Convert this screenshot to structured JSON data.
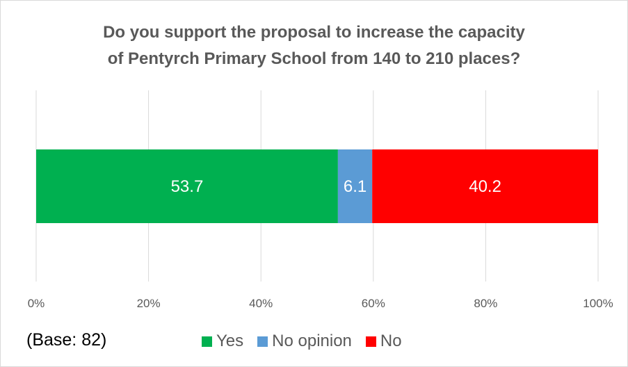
{
  "chart_data": {
    "type": "bar",
    "orientation": "horizontal",
    "stacked": true,
    "title_lines": [
      "Do you support the proposal to increase the capacity",
      "of Pentyrch Primary School from 140 to 210 places?"
    ],
    "categories": [
      ""
    ],
    "series": [
      {
        "name": "Yes",
        "values": [
          53.7
        ],
        "color": "#00b050"
      },
      {
        "name": "No opinion",
        "values": [
          6.1
        ],
        "color": "#5b9bd5"
      },
      {
        "name": "No",
        "values": [
          40.2
        ],
        "color": "#ff0000"
      }
    ],
    "x_ticks": [
      "0%",
      "20%",
      "40%",
      "60%",
      "80%",
      "100%"
    ],
    "xlim": [
      0,
      100
    ],
    "grid": true,
    "legend_position": "bottom",
    "footnote": "(Base: 82)"
  }
}
